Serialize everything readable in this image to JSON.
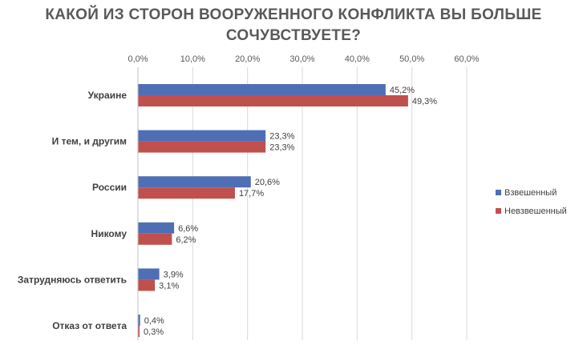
{
  "chart_data": {
    "type": "bar",
    "orientation": "horizontal",
    "title_lines": [
      "КАКОЙ ИЗ СТОРОН ВООРУЖЕННОГО КОНФЛИКТА ВЫ БОЛЬШЕ",
      "СОЧУВСТВУЕТЕ?"
    ],
    "categories": [
      "Украине",
      "И тем, и другим",
      "России",
      "Никому",
      "Затрудняюсь ответить",
      "Отказ от ответа"
    ],
    "series": [
      {
        "name": "Взвешенный",
        "color": "#4f6fb5",
        "values": [
          45.2,
          23.3,
          20.6,
          6.6,
          3.9,
          0.4
        ],
        "labels": [
          "45,2%",
          "23,3%",
          "20,6%",
          "6,6%",
          "3,9%",
          "0,4%"
        ]
      },
      {
        "name": "Невзвешенный",
        "color": "#c0504d",
        "values": [
          49.3,
          23.3,
          17.7,
          6.2,
          3.1,
          0.3
        ],
        "labels": [
          "49,3%",
          "23,3%",
          "17,7%",
          "6,2%",
          "3,1%",
          "0,3%"
        ]
      }
    ],
    "x_ticks": [
      "0,0%",
      "10,0%",
      "20,0%",
      "30,0%",
      "40,0%",
      "50,0%",
      "60,0%"
    ],
    "xlim": [
      0,
      60
    ],
    "tick_step": 10,
    "grid": true,
    "legend_position": "right"
  }
}
